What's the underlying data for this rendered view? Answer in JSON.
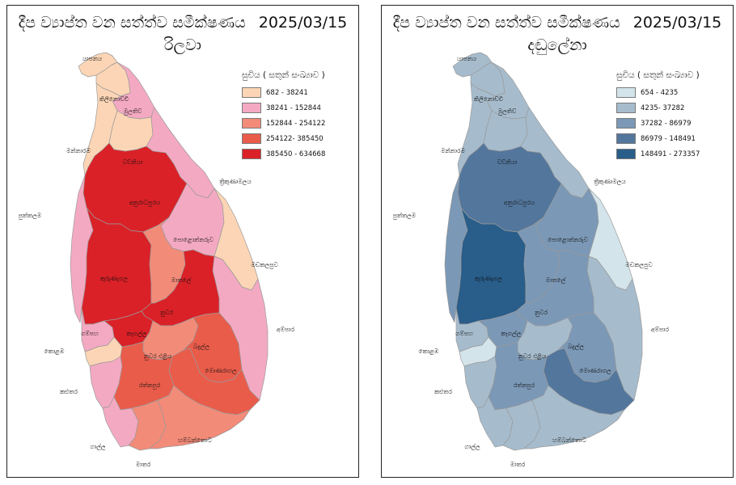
{
  "left": {
    "title": "දීප ව්‍යාප්ත වන සත්ත්ව සමීක්ෂණය",
    "date": "2025/03/15",
    "subtitle": "රිලවා",
    "legend": {
      "title": "සුචිය ( සතුන් සංඛ්‍යාව )",
      "classes": [
        {
          "label": "682 - 38241",
          "color": "#fbd5b5"
        },
        {
          "label": "38241 - 152844",
          "color": "#f4a9c2"
        },
        {
          "label": "152844 - 254122",
          "color": "#f28b78"
        },
        {
          "label": "254122- 385450",
          "color": "#e95c4a"
        },
        {
          "label": "385450 - 634668",
          "color": "#da2127"
        }
      ]
    },
    "district_class": {
      "jaffna": 0,
      "kilinochchi": 0,
      "mullaitivu": 1,
      "mannar": 0,
      "vavuniya": 0,
      "trincomalee": 1,
      "anuradhapura": 4,
      "puttalam": 1,
      "polonnaruwa": 1,
      "batticaloa": 0,
      "kurunegala": 4,
      "matale": 2,
      "ampara": 1,
      "gampaha": 1,
      "kandy": 4,
      "kegalle": 4,
      "colombo": 0,
      "nuwara_eliya": 2,
      "badulla": 3,
      "monaragala": 3,
      "kalutara": 1,
      "ratnapura": 3,
      "galle": 1,
      "matara": 2,
      "hambantota": 2
    }
  },
  "right": {
    "title": "දීප ව්‍යාප්ත වන සත්ත්ව සමීක්ෂණය",
    "date": "2025/03/15",
    "subtitle": "දඬුලේනා",
    "legend": {
      "title": "සුචිය ( සතුන් සංඛ්‍යාව )",
      "classes": [
        {
          "label": "654 - 4235",
          "color": "#d3e4ea"
        },
        {
          "label": "4235- 37282",
          "color": "#a6bccd"
        },
        {
          "label": "37282 - 86979",
          "color": "#7b98b6"
        },
        {
          "label": "86979 - 148491",
          "color": "#53769c"
        },
        {
          "label": "148491 - 273357",
          "color": "#295d8a"
        }
      ]
    },
    "district_class": {
      "jaffna": 1,
      "kilinochchi": 1,
      "mullaitivu": 1,
      "mannar": 1,
      "vavuniya": 1,
      "trincomalee": 1,
      "anuradhapura": 3,
      "puttalam": 2,
      "polonnaruwa": 2,
      "batticaloa": 0,
      "kurunegala": 4,
      "matale": 2,
      "ampara": 1,
      "gampaha": 1,
      "kandy": 2,
      "kegalle": 2,
      "colombo": 0,
      "nuwara_eliya": 1,
      "badulla": 2,
      "monaragala": 3,
      "kalutara": 1,
      "ratnapura": 2,
      "galle": 1,
      "matara": 1,
      "hambantota": 1
    }
  },
  "districts": [
    {
      "id": "jaffna",
      "name": "යාපනය"
    },
    {
      "id": "kilinochchi",
      "name": "කිලිනොච්චි"
    },
    {
      "id": "mullaitivu",
      "name": "මුලතිව්"
    },
    {
      "id": "mannar",
      "name": "මන්නාරම"
    },
    {
      "id": "vavuniya",
      "name": "වව්නියා"
    },
    {
      "id": "trincomalee",
      "name": "ත්‍රිකුණාමලය"
    },
    {
      "id": "anuradhapura",
      "name": "අනුරාධපුරය"
    },
    {
      "id": "puttalam",
      "name": "පුත්තලම"
    },
    {
      "id": "polonnaruwa",
      "name": "පොළොන්නරුව"
    },
    {
      "id": "batticaloa",
      "name": "මඩකලපුව"
    },
    {
      "id": "kurunegala",
      "name": "කුරුණෑගල"
    },
    {
      "id": "matale",
      "name": "මාතලේ"
    },
    {
      "id": "ampara",
      "name": "අම්පාර"
    },
    {
      "id": "gampaha",
      "name": "ගම්පහ"
    },
    {
      "id": "kandy",
      "name": "නුවර"
    },
    {
      "id": "kegalle",
      "name": "කෑගල්ල"
    },
    {
      "id": "colombo",
      "name": "කොළඹ"
    },
    {
      "id": "nuwara_eliya",
      "name": "නුවර එළිය"
    },
    {
      "id": "badulla",
      "name": "බදුල්ල"
    },
    {
      "id": "monaragala",
      "name": "මොණරාගල"
    },
    {
      "id": "kalutara",
      "name": "කළුතර"
    },
    {
      "id": "ratnapura",
      "name": "රත්නපුර"
    },
    {
      "id": "galle",
      "name": "ගාල්ල"
    },
    {
      "id": "matara",
      "name": "මාතර"
    },
    {
      "id": "hambantota",
      "name": "හම්බන්තොට"
    }
  ]
}
